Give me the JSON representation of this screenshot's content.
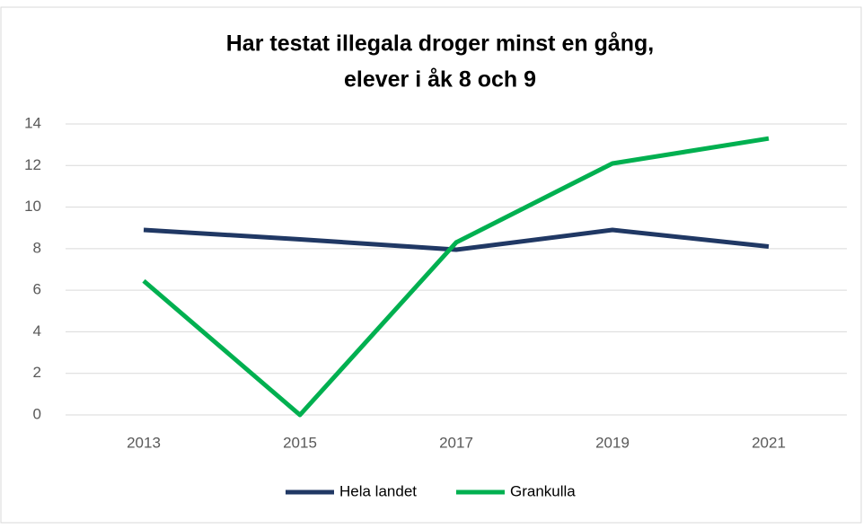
{
  "chart_data": {
    "type": "line",
    "title": [
      "Har testat illegala droger minst en gång,",
      "elever i åk 8 och 9"
    ],
    "categories": [
      "2013",
      "2015",
      "2017",
      "2019",
      "2021"
    ],
    "series": [
      {
        "name": "Hela landet",
        "color": "#203864",
        "values": [
          8.9,
          8.45,
          7.95,
          8.9,
          8.1
        ]
      },
      {
        "name": "Grankulla",
        "color": "#00b050",
        "values": [
          6.45,
          0,
          8.3,
          12.1,
          13.3
        ]
      }
    ],
    "ylim": [
      0,
      14
    ],
    "yticks": [
      0,
      2,
      4,
      6,
      8,
      10,
      12,
      14
    ],
    "grid": true,
    "legend": "bottom"
  }
}
